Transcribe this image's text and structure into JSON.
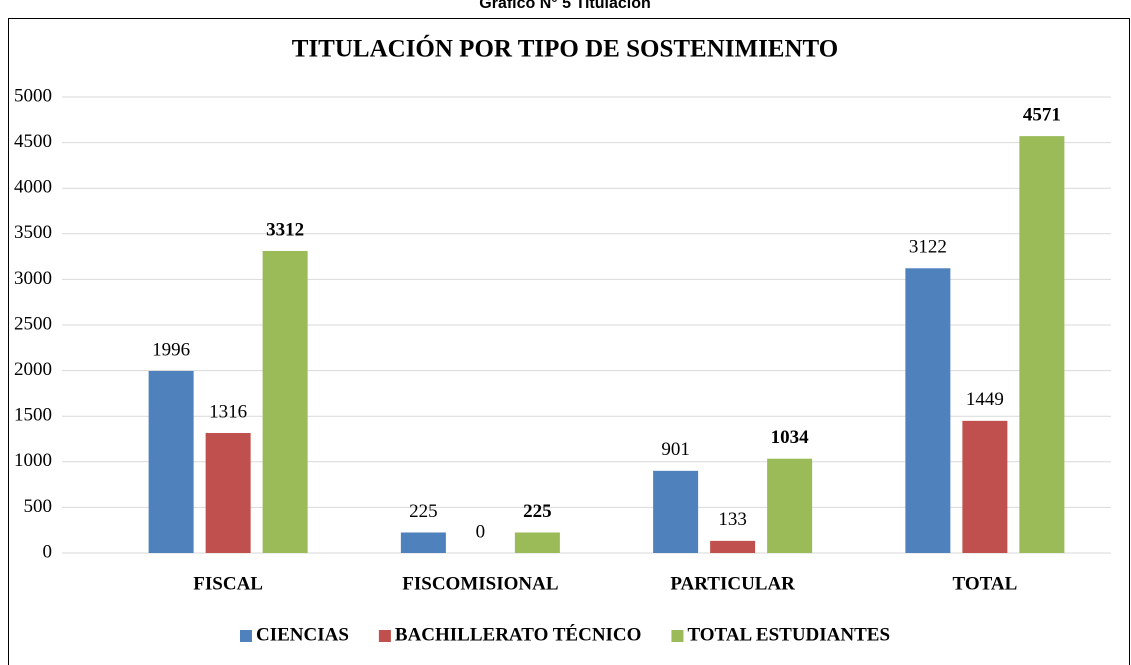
{
  "caption": "Gráfico N° 5 Titulación",
  "chart_data": {
    "type": "bar",
    "title": "TITULACIÓN POR TIPO DE SOSTENIMIENTO",
    "categories": [
      "FISCAL",
      "FISCOMISIONAL",
      "PARTICULAR",
      "TOTAL"
    ],
    "series": [
      {
        "name": "CIENCIAS",
        "color": "#4f81bd",
        "values": [
          1996,
          225,
          901,
          3122
        ]
      },
      {
        "name": "BACHILLERATO TÉCNICO",
        "color": "#c0504d",
        "values": [
          1316,
          0,
          133,
          1449
        ]
      },
      {
        "name": "TOTAL ESTUDIANTES",
        "color": "#9bbb59",
        "values": [
          3312,
          225,
          1034,
          4571
        ]
      }
    ],
    "ylim": [
      0,
      5000
    ],
    "yticks": [
      0,
      500,
      1000,
      1500,
      2000,
      2500,
      3000,
      3500,
      4000,
      4500,
      5000
    ],
    "grid": true,
    "legend": "bottom"
  }
}
